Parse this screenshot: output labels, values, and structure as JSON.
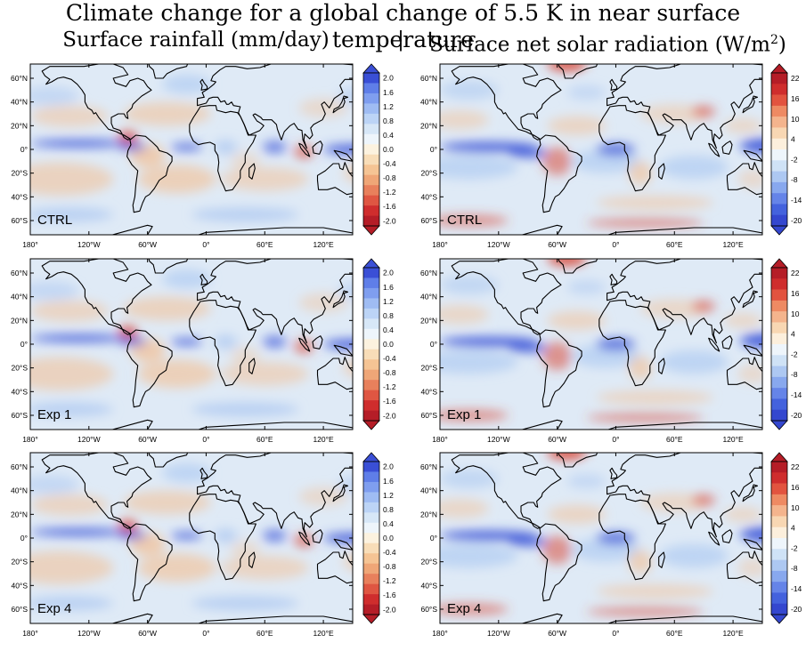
{
  "title": "Climate change for a global change of 5.5 K in near surface temperature",
  "subtitles": {
    "left": "Surface rainfall (mm/day)",
    "separator": "|",
    "right": "Surface net solar radiation (W/m",
    "right_superscript": "2",
    "right_close": ")"
  },
  "axes": {
    "lon_labels": [
      "180°",
      "120°W",
      "60°W",
      "0°",
      "60°E",
      "120°E"
    ],
    "lat_labels": [
      "60°N",
      "40°N",
      "20°N",
      "0°",
      "20°S",
      "40°S",
      "60°S"
    ]
  },
  "colorbars": {
    "rainfall": {
      "ticks": [
        "2.0",
        "1.6",
        "1.2",
        "0.8",
        "0.4",
        "0.0",
        "-0.4",
        "-0.8",
        "-1.2",
        "-1.6",
        "-2.0"
      ],
      "colors_top_to_bottom": [
        "#3a4fd6",
        "#5f7ee8",
        "#7f9eef",
        "#9fbcf3",
        "#bcd4f6",
        "#d7e7f7",
        "#eef5fb",
        "#fcf2df",
        "#f8ddb8",
        "#f5c494",
        "#efa677",
        "#e8805c",
        "#df5642",
        "#cf2d2d",
        "#b51d27"
      ]
    },
    "solar": {
      "ticks": [
        "22",
        "16",
        "10",
        "4",
        "-2",
        "-8",
        "-14",
        "-20"
      ],
      "colors_top_to_bottom": [
        "#b51d27",
        "#cf2d2d",
        "#e2533f",
        "#ee8a63",
        "#f4b48d",
        "#f8d7b3",
        "#fcefdc",
        "#eef5fb",
        "#cfe2f6",
        "#adc8f2",
        "#88a8ee",
        "#6584e8",
        "#4462dd",
        "#3447cf"
      ]
    }
  },
  "panels": [
    {
      "id": "rain-ctrl",
      "variable": "Surface rainfall",
      "label": "CTRL",
      "colorbar": "rainfall"
    },
    {
      "id": "solar-ctrl",
      "variable": "Surface net solar radiation",
      "label": "CTRL",
      "colorbar": "solar"
    },
    {
      "id": "rain-exp1",
      "variable": "Surface rainfall",
      "label": "Exp 1",
      "colorbar": "rainfall"
    },
    {
      "id": "solar-exp1",
      "variable": "Surface net solar radiation",
      "label": "Exp 1",
      "colorbar": "solar"
    },
    {
      "id": "rain-exp4",
      "variable": "Surface rainfall",
      "label": "Exp 4",
      "colorbar": "rainfall"
    },
    {
      "id": "solar-exp4",
      "variable": "Surface net solar radiation",
      "label": "Exp 4",
      "colorbar": "solar"
    }
  ],
  "map_colors": {
    "ocean_wet": "#3c55d8",
    "ocean_mid": "#a9c6f1",
    "ocean_pale": "#dfeaf6",
    "dry": "#f3bf93",
    "very_dry": "#d94a3c",
    "coast": "#000000"
  }
}
